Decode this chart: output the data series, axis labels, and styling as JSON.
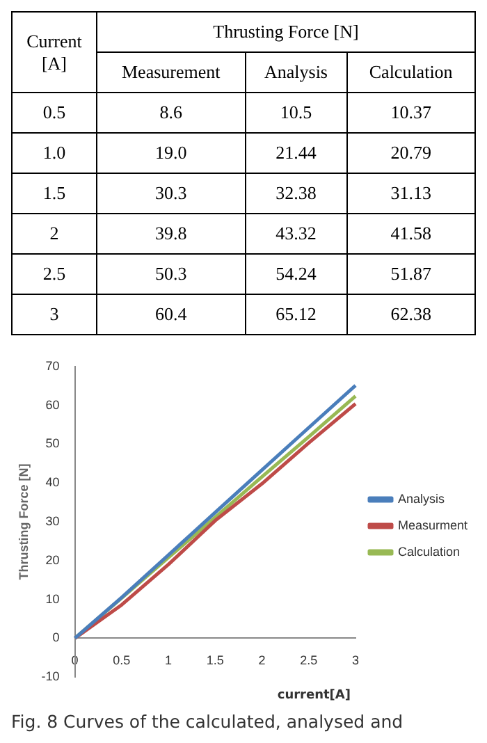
{
  "chart_data": {
    "type": "line",
    "xlabel": "current[A]",
    "ylabel": "Thrusting Force [N]",
    "categories": [
      "0",
      "0.5",
      "1",
      "1.5",
      "2",
      "2.5",
      "3"
    ],
    "series": [
      {
        "name": "Analysis",
        "color": "#4a7ebb",
        "values": [
          0,
          10.5,
          21.44,
          32.38,
          43.32,
          54.24,
          65.12
        ]
      },
      {
        "name": "Measurment",
        "color": "#be4b48",
        "values": [
          0,
          8.6,
          19.0,
          30.3,
          39.8,
          50.3,
          60.4
        ]
      },
      {
        "name": "Calculation",
        "color": "#98b954",
        "values": [
          0,
          10.37,
          20.79,
          31.13,
          41.58,
          51.87,
          62.38
        ]
      }
    ],
    "ylim": [
      -10,
      70
    ],
    "yticks": [
      -10,
      0,
      10,
      20,
      30,
      40,
      50,
      60,
      70
    ],
    "legend": "right",
    "annotations": [
      "Current [A]",
      "Thrusting  Force  [N]",
      "Measurement",
      "Analysis",
      "Calculation",
      "0.5",
      "8.6",
      "10.5",
      "10.37",
      "1.0",
      "19.0",
      "21.44",
      "20.79",
      "1.5",
      "30.3",
      "32.38",
      "31.13",
      "2",
      "39.8",
      "43.32",
      "41.58",
      "2.5",
      "50.3",
      "54.24",
      "51.87",
      "3",
      "60.4",
      "65.12",
      "62.38",
      "Fig.  8  Curves  of  the  calculated,  analysed  and"
    ]
  }
}
